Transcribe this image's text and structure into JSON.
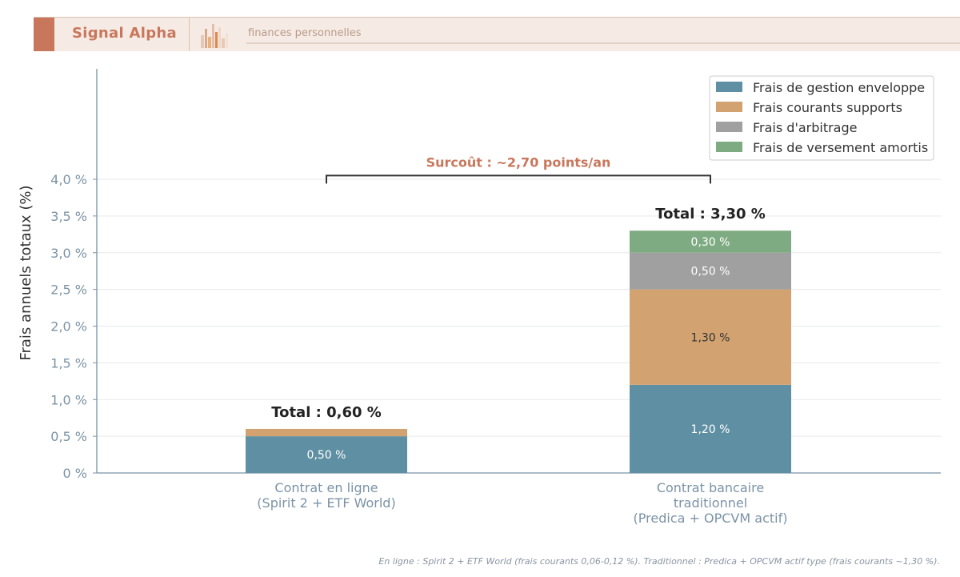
{
  "header": {
    "brand": "Signal Alpha",
    "tagline": "finances personnelles",
    "logo_icon": "bar-chart-logo-icon"
  },
  "colors": {
    "axis": "#7b93a6",
    "grid": "#e6e9ec",
    "gestion": "#5f8fa2",
    "courants": "#d2a271",
    "arbitrage": "#a0a0a0",
    "versement": "#7fab82",
    "surcout": "#c8775c"
  },
  "chart_data": {
    "type": "bar",
    "stacked": true,
    "categories": [
      [
        "Contrat en ligne",
        "(Spirit 2 + ETF World)"
      ],
      [
        "Contrat bancaire",
        "traditionnel",
        "(Predica + OPCVM actif)"
      ]
    ],
    "series": [
      {
        "name": "Frais de gestion enveloppe",
        "color_key": "gestion",
        "values": [
          0.5,
          1.2
        ],
        "labels": [
          "0,50 %",
          "1,20 %"
        ],
        "label_color": "#ffffff"
      },
      {
        "name": "Frais courants supports",
        "color_key": "courants",
        "values": [
          0.1,
          1.3
        ],
        "labels": [
          "",
          "1,30 %"
        ],
        "label_color": "#333333"
      },
      {
        "name": "Frais d'arbitrage",
        "color_key": "arbitrage",
        "values": [
          0,
          0.5
        ],
        "labels": [
          "",
          "0,50 %"
        ],
        "label_color": "#ffffff"
      },
      {
        "name": "Frais de versement amortis",
        "color_key": "versement",
        "values": [
          0,
          0.3
        ],
        "labels": [
          "",
          "0,30 %"
        ],
        "label_color": "#ffffff"
      }
    ],
    "totals": [
      "Total : 0,60 %",
      "Total : 3,30 %"
    ],
    "ylabel": "Frais annuels totaux (%)",
    "ylim": [
      0,
      4.6
    ],
    "yticks": [
      0,
      0.5,
      1.0,
      1.5,
      2.0,
      2.5,
      3.0,
      3.5,
      4.0
    ],
    "ytick_labels": [
      "0 %",
      "0,5 %",
      "1,0 %",
      "1,5 %",
      "2,0 %",
      "2,5 %",
      "3,0 %",
      "3,5 %",
      "4,0 %"
    ],
    "grid": true,
    "legend": "top-right",
    "annotation": {
      "text": "Surcoût : ~2,70 points/an",
      "y": 4.05
    }
  },
  "footnote": "En ligne : Spirit 2 + ETF World (frais courants 0,06-0,12 %).  Traditionnel : Predica + OPCVM actif type (frais courants ~1,30 %)."
}
